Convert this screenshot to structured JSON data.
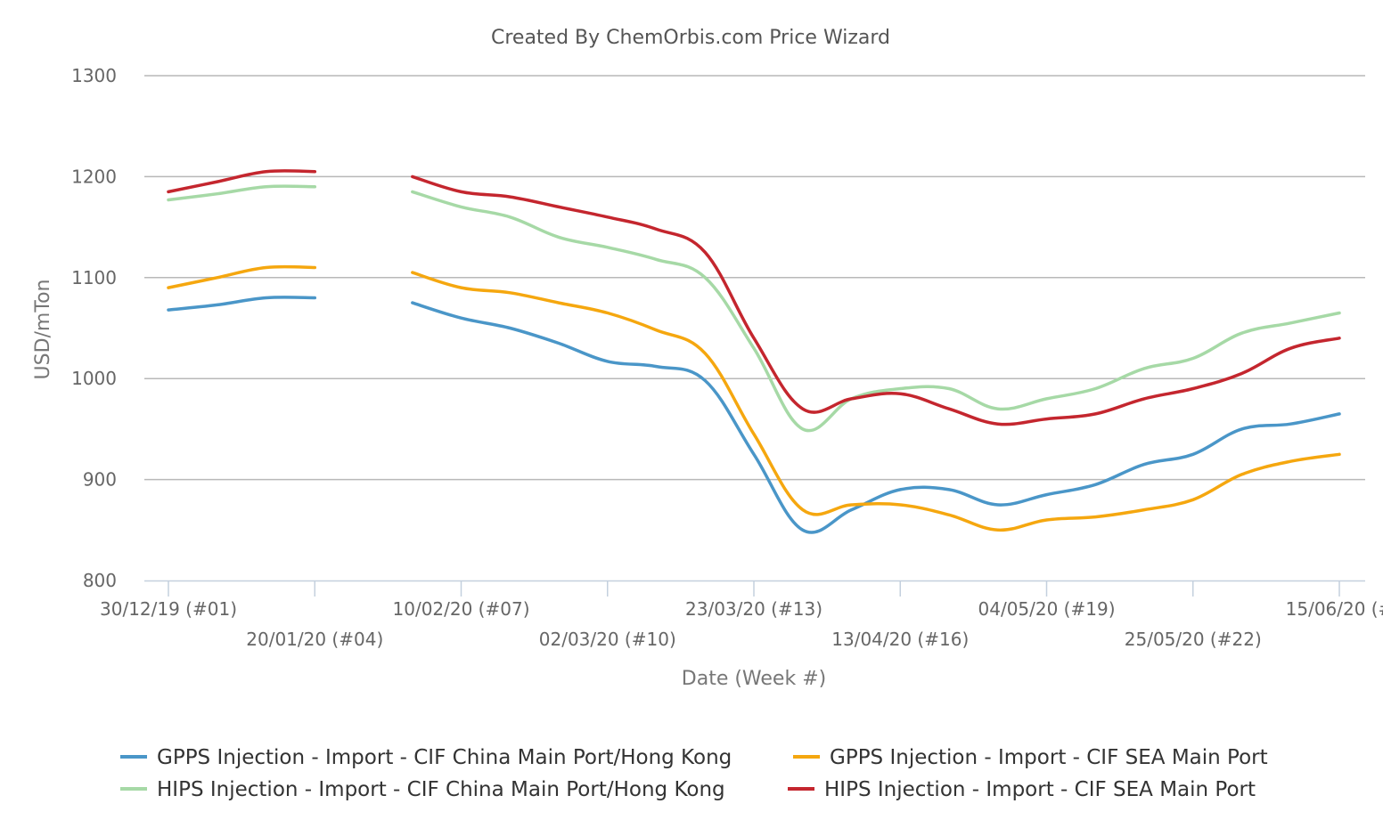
{
  "chart_data": {
    "type": "line",
    "title": "Created By ChemOrbis.com Price Wizard",
    "xlabel": "Date (Week #)",
    "ylabel": "USD/mTon",
    "ylim": [
      800,
      1300
    ],
    "yticks": [
      800,
      900,
      1000,
      1100,
      1200,
      1300
    ],
    "x_week_range": [
      1,
      25
    ],
    "xticks": [
      {
        "week": 1,
        "label": "30/12/19 (#01)",
        "row": 0
      },
      {
        "week": 4,
        "label": "20/01/20 (#04)",
        "row": 1
      },
      {
        "week": 7,
        "label": "10/02/20 (#07)",
        "row": 0
      },
      {
        "week": 10,
        "label": "02/03/20 (#10)",
        "row": 1
      },
      {
        "week": 13,
        "label": "23/03/20 (#13)",
        "row": 0
      },
      {
        "week": 16,
        "label": "13/04/20 (#16)",
        "row": 1
      },
      {
        "week": 19,
        "label": "04/05/20 (#19)",
        "row": 0
      },
      {
        "week": 22,
        "label": "25/05/20 (#22)",
        "row": 1
      },
      {
        "week": 25,
        "label": "15/06/20 (#",
        "row": 0
      }
    ],
    "grid": true,
    "legend_position": "bottom",
    "series": [
      {
        "name": "GPPS Injection - Import - CIF China Main Port/Hong Kong",
        "color": "#4a96c8",
        "points": [
          [
            1,
            1068
          ],
          [
            2,
            1073
          ],
          [
            3,
            1080
          ],
          [
            4,
            1080
          ],
          [
            null,
            null
          ],
          [
            6,
            1075
          ],
          [
            7,
            1060
          ],
          [
            8,
            1050
          ],
          [
            9,
            1035
          ],
          [
            10,
            1017
          ],
          [
            11,
            1012
          ],
          [
            12,
            998
          ],
          [
            13,
            925
          ],
          [
            14,
            850
          ],
          [
            15,
            870
          ],
          [
            16,
            890
          ],
          [
            17,
            890
          ],
          [
            18,
            875
          ],
          [
            19,
            885
          ],
          [
            20,
            895
          ],
          [
            21,
            915
          ],
          [
            22,
            925
          ],
          [
            23,
            950
          ],
          [
            24,
            955
          ],
          [
            25,
            965
          ]
        ]
      },
      {
        "name": "GPPS Injection - Import - CIF SEA Main Port",
        "color": "#f5a70f",
        "points": [
          [
            1,
            1090
          ],
          [
            2,
            1100
          ],
          [
            3,
            1110
          ],
          [
            4,
            1110
          ],
          [
            null,
            null
          ],
          [
            6,
            1105
          ],
          [
            7,
            1090
          ],
          [
            8,
            1085
          ],
          [
            9,
            1075
          ],
          [
            10,
            1065
          ],
          [
            11,
            1048
          ],
          [
            12,
            1025
          ],
          [
            13,
            945
          ],
          [
            14,
            870
          ],
          [
            15,
            875
          ],
          [
            16,
            875
          ],
          [
            17,
            865
          ],
          [
            18,
            850
          ],
          [
            19,
            860
          ],
          [
            20,
            863
          ],
          [
            21,
            870
          ],
          [
            22,
            880
          ],
          [
            23,
            905
          ],
          [
            24,
            918
          ],
          [
            25,
            925
          ]
        ]
      },
      {
        "name": "HIPS Injection - Import - CIF China Main Port/Hong Kong",
        "color": "#a6d9a6",
        "points": [
          [
            1,
            1177
          ],
          [
            2,
            1183
          ],
          [
            3,
            1190
          ],
          [
            4,
            1190
          ],
          [
            null,
            null
          ],
          [
            6,
            1185
          ],
          [
            7,
            1170
          ],
          [
            8,
            1160
          ],
          [
            9,
            1140
          ],
          [
            10,
            1130
          ],
          [
            11,
            1118
          ],
          [
            12,
            1100
          ],
          [
            13,
            1030
          ],
          [
            14,
            950
          ],
          [
            15,
            980
          ],
          [
            16,
            990
          ],
          [
            17,
            990
          ],
          [
            18,
            970
          ],
          [
            19,
            980
          ],
          [
            20,
            990
          ],
          [
            21,
            1010
          ],
          [
            22,
            1020
          ],
          [
            23,
            1045
          ],
          [
            24,
            1055
          ],
          [
            25,
            1065
          ]
        ]
      },
      {
        "name": "HIPS Injection - Import - CIF SEA Main Port",
        "color": "#c4262e",
        "points": [
          [
            1,
            1185
          ],
          [
            2,
            1195
          ],
          [
            3,
            1205
          ],
          [
            4,
            1205
          ],
          [
            null,
            null
          ],
          [
            6,
            1200
          ],
          [
            7,
            1185
          ],
          [
            8,
            1180
          ],
          [
            9,
            1170
          ],
          [
            10,
            1160
          ],
          [
            11,
            1148
          ],
          [
            12,
            1125
          ],
          [
            13,
            1040
          ],
          [
            14,
            970
          ],
          [
            15,
            980
          ],
          [
            16,
            985
          ],
          [
            17,
            970
          ],
          [
            18,
            955
          ],
          [
            19,
            960
          ],
          [
            20,
            965
          ],
          [
            21,
            980
          ],
          [
            22,
            990
          ],
          [
            23,
            1005
          ],
          [
            24,
            1030
          ],
          [
            25,
            1040
          ]
        ]
      }
    ]
  }
}
